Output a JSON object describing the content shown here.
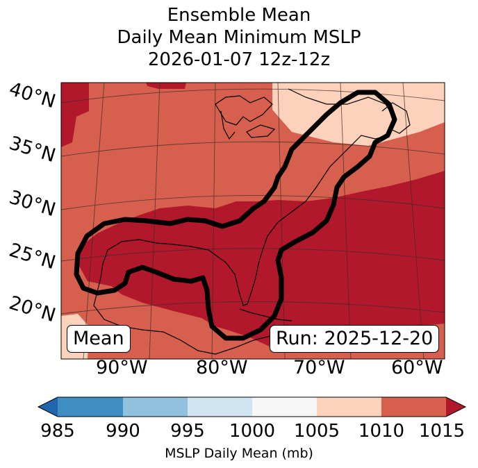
{
  "title": {
    "line1": "Ensemble Mean",
    "line2": "Daily Mean Minimum MSLP",
    "line3": "2026-01-07 12z-12z"
  },
  "lat_labels": [
    "40°N",
    "35°N",
    "30°N",
    "25°N",
    "20°N"
  ],
  "lon_labels": [
    "90°W",
    "80°W",
    "70°W",
    "60°W"
  ],
  "mean_label": "Mean",
  "run_label": "Run: 2025-12-20",
  "colorbar": {
    "ticks": [
      "985",
      "990",
      "995",
      "1000",
      "1005",
      "1010",
      "1015"
    ],
    "colors": [
      "#2166ac",
      "#3e8ec4",
      "#90c2de",
      "#d0e5f1",
      "#f7f7f7",
      "#fdd2bd",
      "#d6604d",
      "#b2182b"
    ],
    "label": "MSLP Daily Mean (mb)"
  }
}
